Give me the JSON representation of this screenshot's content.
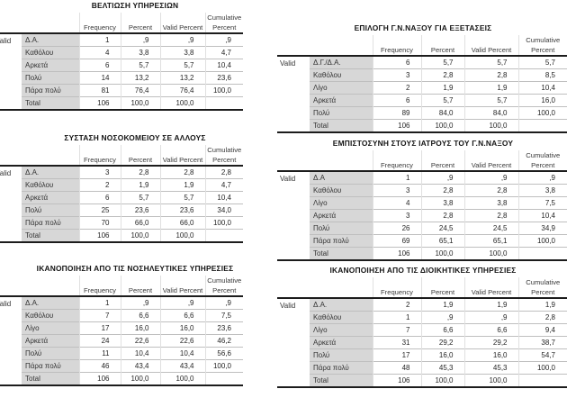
{
  "page": {
    "background": "#ffffff"
  },
  "style_colors": {
    "label_cell_bg": "#d7d7d7",
    "heavy_rule": "#1c1c1c",
    "light_rule": "#bfbfbf",
    "text": "#262626"
  },
  "headers": {
    "stub": "Valid",
    "frequency": "Frequency",
    "percent": "Percent",
    "valid_percent": "Valid Percent",
    "cumulative_line1": "Cumulative",
    "cumulative_line2": "Percent"
  },
  "tables": [
    {
      "title": "ΒΕΛΤΙΩΣΗ ΥΠΗΡΕΣΙΩΝ",
      "rows": [
        {
          "label": "Δ.Α.",
          "f": "1",
          "p": ",9",
          "vp": ",9",
          "cp": ",9"
        },
        {
          "label": "Καθόλου",
          "f": "4",
          "p": "3,8",
          "vp": "3,8",
          "cp": "4,7"
        },
        {
          "label": "Αρκετά",
          "f": "6",
          "p": "5,7",
          "vp": "5,7",
          "cp": "10,4"
        },
        {
          "label": "Πολύ",
          "f": "14",
          "p": "13,2",
          "vp": "13,2",
          "cp": "23,6"
        },
        {
          "label": "Πάρα πολύ",
          "f": "81",
          "p": "76,4",
          "vp": "76,4",
          "cp": "100,0"
        },
        {
          "label": "Total",
          "f": "106",
          "p": "100,0",
          "vp": "100,0",
          "cp": ""
        }
      ]
    },
    {
      "title": "ΕΠΙΛΟΓΗ Γ.Ν.ΝΑΞΟΥ ΓΙΑ ΕΞΕΤΑΣΕΙΣ",
      "rows": [
        {
          "label": "Δ.Γ./Δ.Α.",
          "f": "6",
          "p": "5,7",
          "vp": "5,7",
          "cp": "5,7"
        },
        {
          "label": "Καθόλου",
          "f": "3",
          "p": "2,8",
          "vp": "2,8",
          "cp": "8,5"
        },
        {
          "label": "Λίγο",
          "f": "2",
          "p": "1,9",
          "vp": "1,9",
          "cp": "10,4"
        },
        {
          "label": "Αρκετά",
          "f": "6",
          "p": "5,7",
          "vp": "5,7",
          "cp": "16,0"
        },
        {
          "label": "Πολύ",
          "f": "89",
          "p": "84,0",
          "vp": "84,0",
          "cp": "100,0"
        },
        {
          "label": "Total",
          "f": "106",
          "p": "100,0",
          "vp": "100,0",
          "cp": ""
        }
      ]
    },
    {
      "title": "ΣΥΣΤΑΣΗ ΝΟΣΟΚΟΜΕΙΟΥ ΣΕ ΑΛΛΟΥΣ",
      "rows": [
        {
          "label": "Δ.Α.",
          "f": "3",
          "p": "2,8",
          "vp": "2,8",
          "cp": "2,8"
        },
        {
          "label": "Καθόλου",
          "f": "2",
          "p": "1,9",
          "vp": "1,9",
          "cp": "4,7"
        },
        {
          "label": "Αρκετά",
          "f": "6",
          "p": "5,7",
          "vp": "5,7",
          "cp": "10,4"
        },
        {
          "label": "Πολύ",
          "f": "25",
          "p": "23,6",
          "vp": "23,6",
          "cp": "34,0"
        },
        {
          "label": "Πάρα πολύ",
          "f": "70",
          "p": "66,0",
          "vp": "66,0",
          "cp": "100,0"
        },
        {
          "label": "Total",
          "f": "106",
          "p": "100,0",
          "vp": "100,0",
          "cp": ""
        }
      ]
    },
    {
      "title": "ΕΜΠΙΣΤΟΣΥΝΗ ΣΤΟΥΣ ΙΑΤΡΟΥΣ ΤΟΥ Γ.Ν.ΝΑΞΟΥ",
      "rows": [
        {
          "label": "Δ.Α",
          "f": "1",
          "p": ",9",
          "vp": ",9",
          "cp": ",9"
        },
        {
          "label": "Καθόλου",
          "f": "3",
          "p": "2,8",
          "vp": "2,8",
          "cp": "3,8"
        },
        {
          "label": "Λίγο",
          "f": "4",
          "p": "3,8",
          "vp": "3,8",
          "cp": "7,5"
        },
        {
          "label": "Αρκετά",
          "f": "3",
          "p": "2,8",
          "vp": "2,8",
          "cp": "10,4"
        },
        {
          "label": "Πολύ",
          "f": "26",
          "p": "24,5",
          "vp": "24,5",
          "cp": "34,9"
        },
        {
          "label": "Πάρα πολύ",
          "f": "69",
          "p": "65,1",
          "vp": "65,1",
          "cp": "100,0"
        },
        {
          "label": "Total",
          "f": "106",
          "p": "100,0",
          "vp": "100,0",
          "cp": ""
        }
      ]
    },
    {
      "title": "ΙΚΑΝΟΠΟΙΗΣΗ ΑΠΟ ΤΙΣ ΝΟΣΗΛΕΥΤΙΚΕΣ ΥΠΗΡΕΣΙΕΣ",
      "rows": [
        {
          "label": "Δ.Α.",
          "f": "1",
          "p": ",9",
          "vp": ",9",
          "cp": ",9"
        },
        {
          "label": "Καθόλου",
          "f": "7",
          "p": "6,6",
          "vp": "6,6",
          "cp": "7,5"
        },
        {
          "label": "Λίγο",
          "f": "17",
          "p": "16,0",
          "vp": "16,0",
          "cp": "23,6"
        },
        {
          "label": "Αρκετά",
          "f": "24",
          "p": "22,6",
          "vp": "22,6",
          "cp": "46,2"
        },
        {
          "label": "Πολύ",
          "f": "11",
          "p": "10,4",
          "vp": "10,4",
          "cp": "56,6"
        },
        {
          "label": "Πάρα πολύ",
          "f": "46",
          "p": "43,4",
          "vp": "43,4",
          "cp": "100,0"
        },
        {
          "label": "Total",
          "f": "106",
          "p": "100,0",
          "vp": "100,0",
          "cp": ""
        }
      ]
    },
    {
      "title": "ΙΚΑΝΟΠΟΙΗΣΗ ΑΠΟ ΤΙΣ ΔΙΟΙΚΗΤΙΚΕΣ ΥΠΗΡΕΣΙΕΣ",
      "rows": [
        {
          "label": "Δ.Α.",
          "f": "2",
          "p": "1,9",
          "vp": "1,9",
          "cp": "1,9"
        },
        {
          "label": "Καθόλου",
          "f": "1",
          "p": ",9",
          "vp": ",9",
          "cp": "2,8"
        },
        {
          "label": "Λίγο",
          "f": "7",
          "p": "6,6",
          "vp": "6,6",
          "cp": "9,4"
        },
        {
          "label": "Αρκετά",
          "f": "31",
          "p": "29,2",
          "vp": "29,2",
          "cp": "38,7"
        },
        {
          "label": "Πολύ",
          "f": "17",
          "p": "16,0",
          "vp": "16,0",
          "cp": "54,7"
        },
        {
          "label": "Πάρα πολύ",
          "f": "48",
          "p": "45,3",
          "vp": "45,3",
          "cp": "100,0"
        },
        {
          "label": "Total",
          "f": "106",
          "p": "100,0",
          "vp": "100,0",
          "cp": ""
        }
      ]
    }
  ]
}
